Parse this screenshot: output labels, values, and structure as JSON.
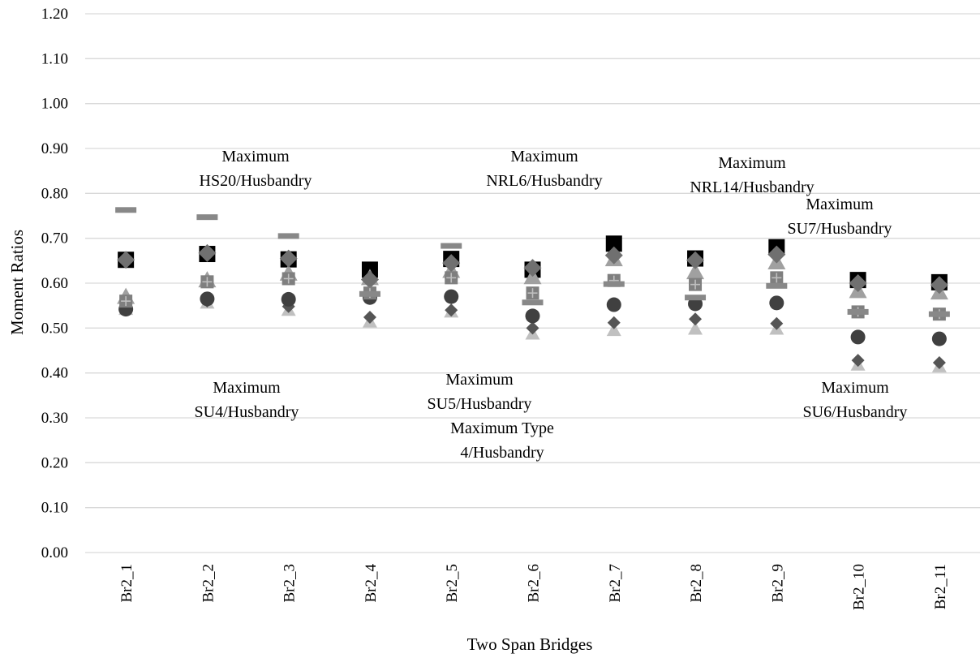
{
  "chart_data": {
    "type": "scatter",
    "xlabel": "Two Span Bridges",
    "ylabel": "Moment Ratios",
    "ylim": [
      0,
      1.2
    ],
    "yticks": [
      0,
      0.1,
      0.2,
      0.3,
      0.4,
      0.5,
      0.6,
      0.7,
      0.8,
      0.9,
      1.0,
      1.1,
      1.2
    ],
    "ytick_labels": [
      "0.00",
      "0.10",
      "0.20",
      "0.30",
      "0.40",
      "0.50",
      "0.60",
      "0.70",
      "0.80",
      "0.90",
      "1.00",
      "1.10",
      "1.20"
    ],
    "grid": "horizontal",
    "categories": [
      "Br2_1",
      "Br2_2",
      "Br2_3",
      "Br2_4",
      "Br2_5",
      "Br2_6",
      "Br2_7",
      "Br2_8",
      "Br2_9",
      "Br2_10",
      "Br2_11"
    ],
    "series": [
      {
        "marker": "dash",
        "color": "#888888",
        "values": [
          0.763,
          0.747,
          0.705,
          0.576,
          0.683,
          0.557,
          0.598,
          0.568,
          0.594,
          0.536,
          0.531
        ]
      },
      {
        "marker": "square",
        "color": "#000000",
        "values": [
          0.652,
          0.665,
          0.653,
          0.63,
          0.654,
          0.63,
          0.688,
          0.655,
          0.68,
          0.607,
          0.602
        ]
      },
      {
        "marker": "diamond",
        "color": "#707070",
        "values": [
          0.652,
          0.667,
          0.655,
          0.608,
          0.645,
          0.634,
          0.662,
          0.651,
          0.664,
          0.6,
          0.596
        ]
      },
      {
        "marker": "triangle",
        "color": "#a0a0a0",
        "values": [
          0.57,
          0.607,
          0.622,
          0.612,
          0.628,
          0.614,
          0.654,
          0.625,
          0.647,
          0.583,
          0.58
        ]
      },
      {
        "marker": "plus-square",
        "color": "#7f7f7f",
        "values": [
          0.56,
          0.603,
          0.61,
          0.578,
          0.612,
          0.578,
          0.606,
          0.597,
          0.612,
          0.536,
          0.531
        ]
      },
      {
        "marker": "circle",
        "color": "#404040",
        "values": [
          0.542,
          0.565,
          0.564,
          0.568,
          0.57,
          0.527,
          0.552,
          0.554,
          0.556,
          0.48,
          0.476
        ]
      },
      {
        "marker": "small-diamond",
        "color": "#555555",
        "values": [
          0.55,
          0.56,
          0.548,
          0.524,
          0.54,
          0.5,
          0.512,
          0.52,
          0.51,
          0.428,
          0.423
        ]
      },
      {
        "marker": "light-triangle",
        "color": "#c0c0c0",
        "values": [
          0.542,
          0.556,
          0.54,
          0.514,
          0.536,
          0.487,
          0.495,
          0.498,
          0.498,
          0.418,
          0.414
        ]
      }
    ],
    "annotations": [
      {
        "lines": [
          "Maximum",
          "HS20/Husbandry"
        ]
      },
      {
        "lines": [
          "Maximum",
          "NRL6/Husbandry"
        ]
      },
      {
        "lines": [
          "Maximum",
          "NRL14/Husbandry"
        ]
      },
      {
        "lines": [
          "Maximum",
          "SU7/Husbandry"
        ]
      },
      {
        "lines": [
          "Maximum",
          "SU4/Husbandry"
        ]
      },
      {
        "lines": [
          "Maximum",
          "SU5/Husbandry"
        ]
      },
      {
        "lines": [
          "Maximum Type",
          "4/Husbandry"
        ]
      },
      {
        "lines": [
          "Maximum",
          "SU6/Husbandry"
        ]
      }
    ]
  }
}
